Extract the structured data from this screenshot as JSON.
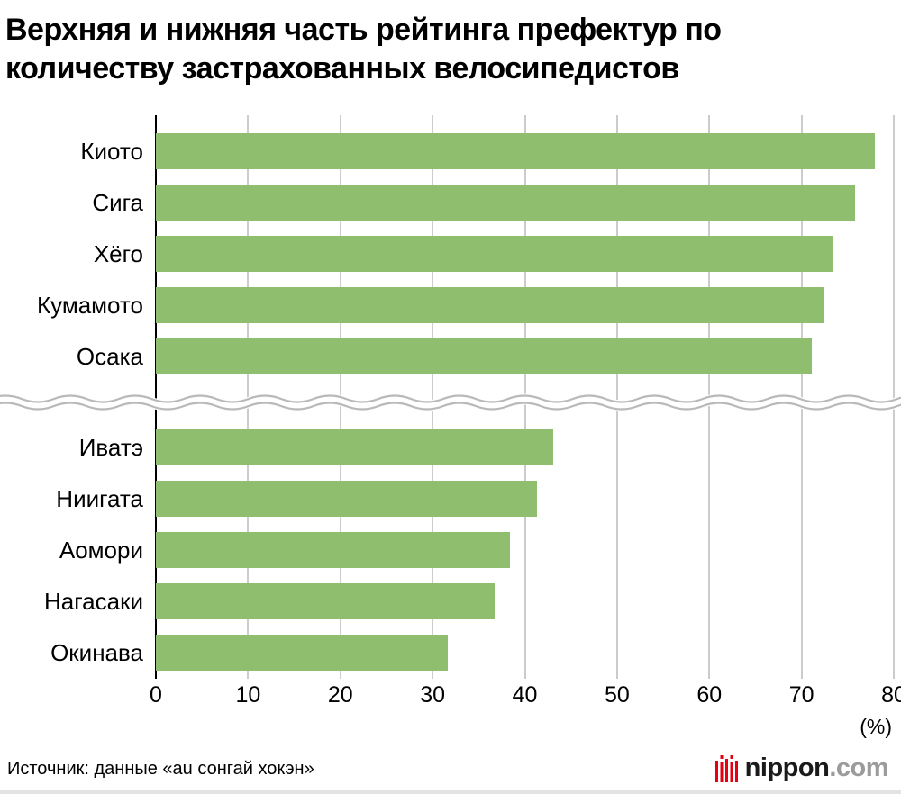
{
  "title": "Верхняя и нижняя часть рейтинга префектур по количеству застрахованных велосипедистов",
  "source": "Источник: данные «au сонгай хокэн»",
  "logo": {
    "name": "nippon",
    "tld": ".com",
    "accent_color": "#e60012"
  },
  "chart_data": {
    "type": "bar",
    "orientation": "horizontal",
    "title": "Верхняя и нижняя часть рейтинга префектур по количеству застрахованных велосипедистов",
    "xlabel": "(%)",
    "unit_label": "(%)",
    "xlim": [
      0,
      80
    ],
    "ticks": [
      0,
      10,
      20,
      30,
      40,
      50,
      60,
      70,
      80
    ],
    "grid": true,
    "separator": "wavy-axis-break",
    "bar_color": "#8ebe6e",
    "groups": [
      {
        "name": "top",
        "categories": [
          "Киото",
          "Сига",
          "Хёго",
          "Кумамото",
          "Осака"
        ],
        "values": [
          77.9,
          75.8,
          73.5,
          72.4,
          71.1
        ]
      },
      {
        "name": "bottom",
        "categories": [
          "Иватэ",
          "Ниигата",
          "Аомори",
          "Нагасаки",
          "Окинава"
        ],
        "values": [
          43.1,
          41.3,
          38.4,
          36.7,
          31.6
        ]
      }
    ]
  }
}
